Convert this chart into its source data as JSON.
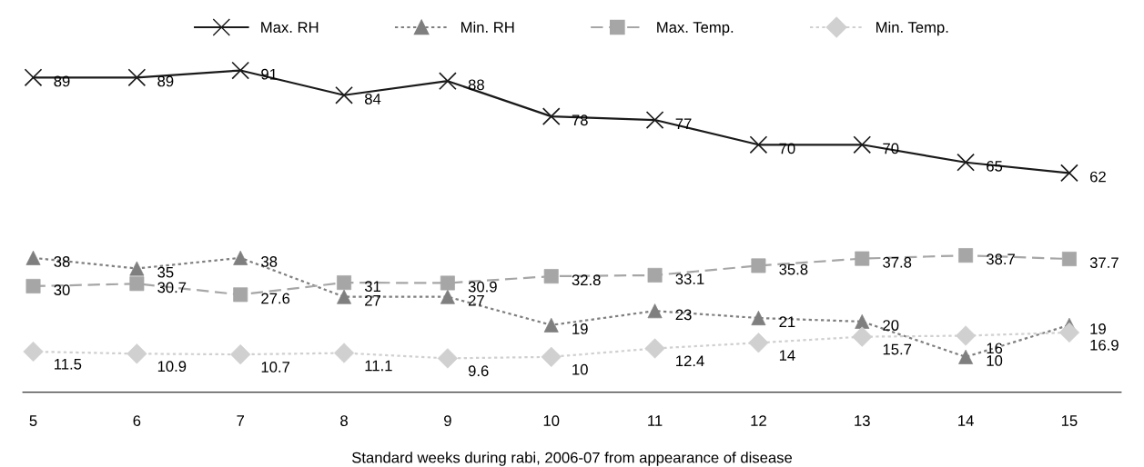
{
  "chart_data": {
    "type": "line",
    "xlabel": "Standard weeks during rabi, 2006-07 from appearance of disease",
    "categories": [
      "5",
      "6",
      "7",
      "8",
      "9",
      "10",
      "11",
      "12",
      "13",
      "14",
      "15"
    ],
    "series": [
      {
        "name": "Max. RH",
        "color": "#1a1a1a",
        "marker": "cross",
        "line_style": "solid",
        "values": [
          89,
          89,
          91,
          84,
          88,
          78,
          77,
          70,
          70,
          65,
          62
        ]
      },
      {
        "name": "Min. RH",
        "color": "#7f7f7f",
        "marker": "triangle",
        "line_style": "dotted",
        "values": [
          38,
          35,
          38,
          27,
          27,
          19,
          23,
          21,
          20,
          10,
          19
        ]
      },
      {
        "name": "Max. Temp.",
        "color": "#a6a6a6",
        "marker": "square",
        "line_style": "dashed",
        "values": [
          30,
          30.7,
          27.6,
          31,
          30.9,
          32.8,
          33.1,
          35.8,
          37.8,
          38.7,
          37.7
        ]
      },
      {
        "name": "Min. Temp.",
        "color": "#d0d0d0",
        "marker": "diamond",
        "line_style": "dotted",
        "values": [
          11.5,
          10.9,
          10.7,
          11.1,
          9.6,
          10,
          12.4,
          14,
          15.7,
          16,
          16.9
        ]
      }
    ],
    "data_labels": true,
    "legend": "top",
    "grid": false,
    "tick_labels": "x"
  }
}
